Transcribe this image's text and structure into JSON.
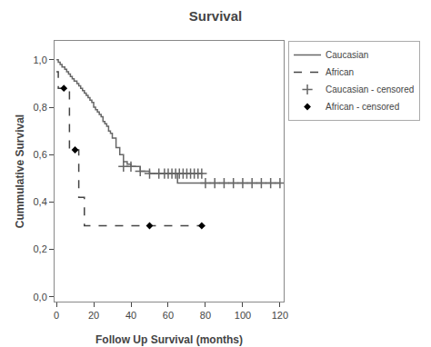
{
  "chart_data": {
    "type": "step",
    "title": "Survival",
    "x_label": "Follow Up Survival (months)",
    "y_label": "Cummulative Survival",
    "xlim": [
      -1,
      122
    ],
    "ylim": [
      -0.02,
      1.08
    ],
    "xticks": [
      0,
      20,
      40,
      60,
      80,
      100,
      120
    ],
    "yticks": [
      {
        "value": 0.0,
        "label": "0,0"
      },
      {
        "value": 0.2,
        "label": "0,2"
      },
      {
        "value": 0.4,
        "label": "0,4"
      },
      {
        "value": 0.6,
        "label": "0,6"
      },
      {
        "value": 0.8,
        "label": "0,8"
      },
      {
        "value": 1.0,
        "label": "1,0"
      }
    ],
    "grid": false,
    "legend": "right",
    "series": [
      {
        "name": "Caucasian",
        "type": "step",
        "color": "#666666",
        "line_style": "solid",
        "x": [
          0,
          0.5,
          1,
          1.5,
          2,
          2.5,
          3,
          3.5,
          4,
          4.5,
          5,
          5.5,
          6,
          6.5,
          7,
          7.5,
          8,
          8.5,
          9,
          9.5,
          10,
          11,
          12,
          13,
          14,
          15,
          16,
          17,
          18,
          19,
          20,
          21,
          22,
          23,
          24,
          25,
          26,
          27,
          28,
          29,
          30,
          32,
          34,
          36,
          38,
          40,
          45,
          50,
          55,
          60,
          65,
          70,
          75,
          80,
          90,
          100,
          110,
          120
        ],
        "values": [
          1.0,
          1.0,
          0.99,
          0.99,
          0.98,
          0.98,
          0.97,
          0.97,
          0.97,
          0.96,
          0.96,
          0.95,
          0.95,
          0.94,
          0.94,
          0.93,
          0.93,
          0.92,
          0.92,
          0.91,
          0.91,
          0.9,
          0.89,
          0.88,
          0.87,
          0.86,
          0.85,
          0.84,
          0.83,
          0.82,
          0.8,
          0.79,
          0.78,
          0.77,
          0.76,
          0.74,
          0.73,
          0.72,
          0.7,
          0.69,
          0.67,
          0.63,
          0.6,
          0.57,
          0.56,
          0.55,
          0.53,
          0.52,
          0.52,
          0.52,
          0.48,
          0.48,
          0.48,
          0.48,
          0.48,
          0.48,
          0.48,
          0.48
        ]
      },
      {
        "name": "African",
        "type": "step",
        "color": "#444444",
        "line_style": "dashed",
        "x": [
          0,
          1,
          2,
          3,
          5,
          7,
          10,
          12,
          15,
          25,
          50,
          75,
          80
        ],
        "values": [
          0.95,
          0.88,
          0.88,
          0.88,
          0.88,
          0.62,
          0.62,
          0.42,
          0.3,
          0.3,
          0.3,
          0.3,
          0.3
        ]
      },
      {
        "name": "Caucasian - censored",
        "type": "scatter",
        "color": "#666666",
        "marker": "plus",
        "x": [
          36,
          40,
          45,
          50,
          55,
          58,
          60,
          62,
          64,
          66,
          68,
          70,
          72,
          74,
          76,
          78,
          80,
          85,
          90,
          95,
          100,
          105,
          110,
          115,
          120
        ],
        "values": [
          0.55,
          0.55,
          0.53,
          0.52,
          0.52,
          0.52,
          0.52,
          0.52,
          0.52,
          0.52,
          0.52,
          0.52,
          0.52,
          0.52,
          0.52,
          0.52,
          0.48,
          0.48,
          0.48,
          0.48,
          0.48,
          0.48,
          0.48,
          0.48,
          0.48
        ]
      },
      {
        "name": "African - censored",
        "type": "scatter",
        "color": "#000000",
        "marker": "diamond",
        "x": [
          4,
          10,
          50,
          78
        ],
        "values": [
          0.88,
          0.62,
          0.3,
          0.3
        ]
      }
    ]
  }
}
